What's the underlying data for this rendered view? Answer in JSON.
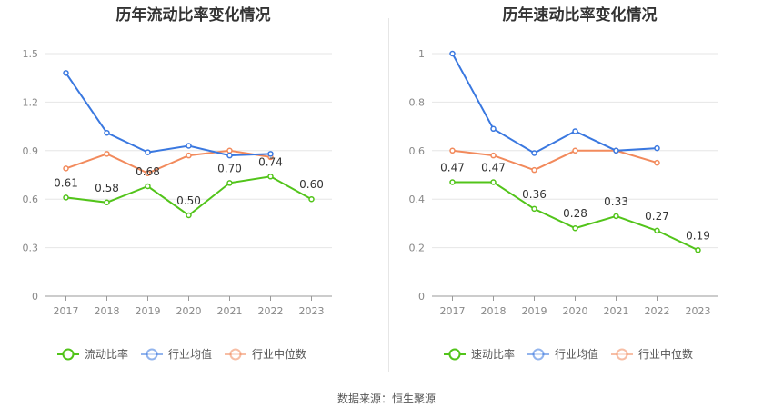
{
  "chart_data": [
    {
      "type": "line",
      "title": "历年流动比率变化情况",
      "categories": [
        "2017",
        "2018",
        "2019",
        "2020",
        "2021",
        "2022",
        "2023"
      ],
      "ylim": [
        0,
        1.5
      ],
      "yticks": [
        "0",
        "0.3",
        "0.6",
        "0.9",
        "1.2",
        "1.5"
      ],
      "grid": true,
      "legend_position": "bottom",
      "series": [
        {
          "name": "流动比率",
          "color": "#52c41a",
          "values": [
            0.61,
            0.58,
            0.68,
            0.5,
            0.7,
            0.74,
            0.6
          ],
          "labels": [
            "0.61",
            "0.58",
            "0.68",
            "0.50",
            "0.70",
            "0.74",
            "0.60"
          ]
        },
        {
          "name": "行业均值",
          "color": "#3a78e0",
          "values": [
            1.38,
            1.01,
            0.89,
            0.93,
            0.87,
            0.88,
            null
          ]
        },
        {
          "name": "行业中位数",
          "color": "#f28a5c",
          "values": [
            0.79,
            0.88,
            0.76,
            0.87,
            0.9,
            0.86,
            null
          ]
        }
      ]
    },
    {
      "type": "line",
      "title": "历年速动比率变化情况",
      "categories": [
        "2017",
        "2018",
        "2019",
        "2020",
        "2021",
        "2022",
        "2023"
      ],
      "ylim": [
        0,
        1
      ],
      "yticks": [
        "0",
        "0.2",
        "0.4",
        "0.6",
        "0.8",
        "1"
      ],
      "grid": true,
      "legend_position": "bottom",
      "series": [
        {
          "name": "速动比率",
          "color": "#52c41a",
          "values": [
            0.47,
            0.47,
            0.36,
            0.28,
            0.33,
            0.27,
            0.19
          ],
          "labels": [
            "0.47",
            "0.47",
            "0.36",
            "0.28",
            "0.33",
            "0.27",
            "0.19"
          ]
        },
        {
          "name": "行业均值",
          "color": "#3a78e0",
          "values": [
            1.0,
            0.69,
            0.59,
            0.68,
            0.6,
            0.61,
            null
          ]
        },
        {
          "name": "行业中位数",
          "color": "#f28a5c",
          "values": [
            0.6,
            0.58,
            0.52,
            0.6,
            0.6,
            0.55,
            null
          ]
        }
      ]
    }
  ],
  "footer": {
    "source": "数据来源：恒生聚源"
  }
}
